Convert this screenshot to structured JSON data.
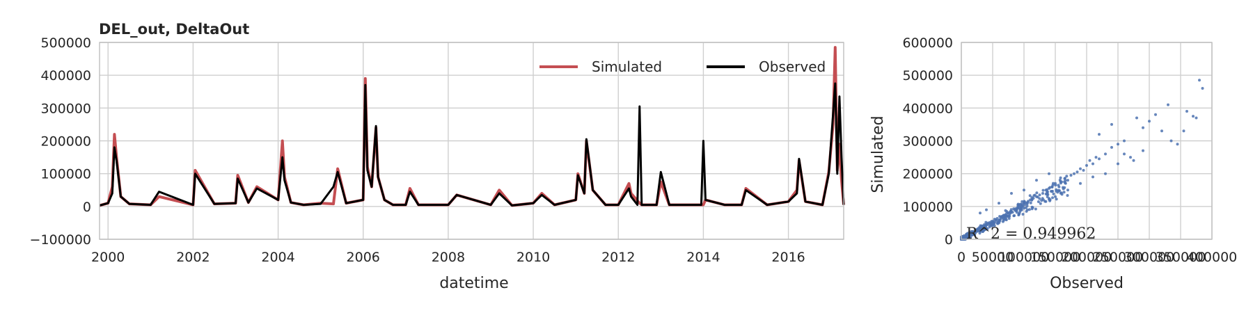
{
  "chart_data": [
    {
      "type": "line",
      "title": "DEL_out, DeltaOut",
      "xlabel": "datetime",
      "ylabel": "",
      "xlim": [
        1999.8,
        2017.3
      ],
      "ylim": [
        -100000,
        500000
      ],
      "xticks": [
        "2000",
        "2002",
        "2004",
        "2006",
        "2008",
        "2010",
        "2012",
        "2014",
        "2016"
      ],
      "yticks": [
        "−100000",
        "0",
        "100000",
        "200000",
        "300000",
        "400000",
        "500000"
      ],
      "grid": true,
      "legend_position": "top-right",
      "series": [
        {
          "name": "Simulated",
          "color": "#c44e52",
          "x": [
            1999.8,
            2000.0,
            2000.1,
            2000.15,
            2000.2,
            2000.3,
            2000.5,
            2001.0,
            2001.2,
            2002.0,
            2002.05,
            2002.5,
            2003.0,
            2003.05,
            2003.3,
            2003.5,
            2004.0,
            2004.1,
            2004.15,
            2004.3,
            2004.6,
            2005.0,
            2005.3,
            2005.4,
            2005.6,
            2006.0,
            2006.05,
            2006.1,
            2006.2,
            2006.3,
            2006.35,
            2006.5,
            2006.7,
            2007.0,
            2007.1,
            2007.3,
            2008.0,
            2008.2,
            2009.0,
            2009.2,
            2009.5,
            2010.0,
            2010.2,
            2010.5,
            2011.0,
            2011.05,
            2011.2,
            2011.25,
            2011.4,
            2011.7,
            2012.0,
            2012.25,
            2012.3,
            2012.5,
            2012.55,
            2012.9,
            2013.0,
            2013.2,
            2014.0,
            2014.05,
            2014.5,
            2014.9,
            2015.0,
            2015.5,
            2016.0,
            2016.2,
            2016.25,
            2016.4,
            2016.8,
            2016.95,
            2017.05,
            2017.1,
            2017.15,
            2017.2,
            2017.25,
            2017.3
          ],
          "y": [
            3000,
            10000,
            60000,
            220000,
            150000,
            30000,
            8000,
            5000,
            30000,
            5000,
            110000,
            8000,
            10000,
            95000,
            12000,
            60000,
            20000,
            200000,
            90000,
            12000,
            5000,
            10000,
            8000,
            115000,
            10000,
            20000,
            390000,
            120000,
            60000,
            240000,
            90000,
            20000,
            5000,
            5000,
            55000,
            5000,
            5000,
            35000,
            5000,
            50000,
            3000,
            10000,
            40000,
            5000,
            20000,
            100000,
            40000,
            200000,
            50000,
            5000,
            5000,
            70000,
            40000,
            10000,
            5000,
            5000,
            75000,
            5000,
            5000,
            20000,
            5000,
            5000,
            55000,
            5000,
            15000,
            50000,
            140000,
            15000,
            5000,
            105000,
            250000,
            485000,
            110000,
            190000,
            80000,
            5000
          ]
        },
        {
          "name": "Observed",
          "color": "#000000",
          "x": [
            1999.8,
            2000.0,
            2000.1,
            2000.15,
            2000.2,
            2000.3,
            2000.5,
            2001.0,
            2001.2,
            2002.0,
            2002.05,
            2002.5,
            2003.0,
            2003.05,
            2003.3,
            2003.5,
            2004.0,
            2004.1,
            2004.15,
            2004.3,
            2004.6,
            2005.0,
            2005.3,
            2005.4,
            2005.6,
            2006.0,
            2006.05,
            2006.1,
            2006.2,
            2006.3,
            2006.35,
            2006.5,
            2006.7,
            2007.0,
            2007.1,
            2007.3,
            2008.0,
            2008.2,
            2009.0,
            2009.2,
            2009.5,
            2010.0,
            2010.2,
            2010.5,
            2011.0,
            2011.05,
            2011.2,
            2011.25,
            2011.4,
            2011.7,
            2012.0,
            2012.25,
            2012.3,
            2012.45,
            2012.5,
            2012.55,
            2012.9,
            2013.0,
            2013.2,
            2013.95,
            2014.0,
            2014.05,
            2014.5,
            2014.9,
            2015.0,
            2015.5,
            2016.0,
            2016.2,
            2016.25,
            2016.4,
            2016.8,
            2016.95,
            2017.05,
            2017.1,
            2017.15,
            2017.2,
            2017.25,
            2017.3
          ],
          "y": [
            3000,
            10000,
            40000,
            180000,
            140000,
            30000,
            8000,
            5000,
            45000,
            5000,
            100000,
            8000,
            10000,
            85000,
            12000,
            55000,
            20000,
            150000,
            80000,
            12000,
            5000,
            8000,
            60000,
            105000,
            10000,
            20000,
            370000,
            110000,
            60000,
            245000,
            90000,
            20000,
            5000,
            5000,
            45000,
            5000,
            5000,
            35000,
            5000,
            40000,
            3000,
            10000,
            35000,
            5000,
            20000,
            95000,
            40000,
            205000,
            50000,
            5000,
            5000,
            55000,
            30000,
            5000,
            305000,
            5000,
            5000,
            105000,
            5000,
            5000,
            200000,
            20000,
            5000,
            5000,
            50000,
            5000,
            15000,
            40000,
            145000,
            15000,
            5000,
            100000,
            280000,
            375000,
            100000,
            335000,
            150000,
            5000
          ]
        }
      ]
    },
    {
      "type": "scatter",
      "title": "",
      "xlabel": "Observed",
      "ylabel": "Simulated",
      "xlim": [
        0,
        400000
      ],
      "ylim": [
        0,
        600000
      ],
      "xticks": [
        "0",
        "50000",
        "100000",
        "150000",
        "200000",
        "250000",
        "300000",
        "350000",
        "400000"
      ],
      "yticks": [
        "0",
        "100000",
        "200000",
        "300000",
        "400000",
        "500000",
        "600000"
      ],
      "grid": true,
      "color": "#4c72b0",
      "annotation": "R^2 = 0.949962",
      "points": [
        [
          5000,
          6000
        ],
        [
          8000,
          7000
        ],
        [
          12000,
          14000
        ],
        [
          15000,
          16000
        ],
        [
          20000,
          22000
        ],
        [
          25000,
          24000
        ],
        [
          30000,
          35000
        ],
        [
          35000,
          33000
        ],
        [
          40000,
          45000
        ],
        [
          45000,
          42000
        ],
        [
          50000,
          55000
        ],
        [
          55000,
          60000
        ],
        [
          60000,
          58000
        ],
        [
          65000,
          70000
        ],
        [
          70000,
          72000
        ],
        [
          75000,
          80000
        ],
        [
          80000,
          85000
        ],
        [
          85000,
          90000
        ],
        [
          90000,
          95000
        ],
        [
          95000,
          100000
        ],
        [
          100000,
          110000
        ],
        [
          105000,
          108000
        ],
        [
          110000,
          120000
        ],
        [
          115000,
          125000
        ],
        [
          120000,
          130000
        ],
        [
          125000,
          135000
        ],
        [
          130000,
          140000
        ],
        [
          135000,
          150000
        ],
        [
          140000,
          155000
        ],
        [
          145000,
          160000
        ],
        [
          150000,
          170000
        ],
        [
          155000,
          165000
        ],
        [
          160000,
          175000
        ],
        [
          165000,
          185000
        ],
        [
          170000,
          180000
        ],
        [
          175000,
          195000
        ],
        [
          180000,
          200000
        ],
        [
          185000,
          205000
        ],
        [
          190000,
          215000
        ],
        [
          195000,
          210000
        ],
        [
          200000,
          225000
        ],
        [
          205000,
          240000
        ],
        [
          210000,
          230000
        ],
        [
          215000,
          250000
        ],
        [
          220000,
          245000
        ],
        [
          230000,
          260000
        ],
        [
          240000,
          280000
        ],
        [
          250000,
          290000
        ],
        [
          260000,
          300000
        ],
        [
          280000,
          370000
        ],
        [
          290000,
          340000
        ],
        [
          300000,
          360000
        ],
        [
          310000,
          380000
        ],
        [
          320000,
          330000
        ],
        [
          330000,
          410000
        ],
        [
          335000,
          300000
        ],
        [
          345000,
          290000
        ],
        [
          355000,
          330000
        ],
        [
          360000,
          390000
        ],
        [
          370000,
          375000
        ],
        [
          375000,
          370000
        ],
        [
          380000,
          485000
        ],
        [
          385000,
          460000
        ],
        [
          30000,
          80000
        ],
        [
          40000,
          90000
        ],
        [
          60000,
          110000
        ],
        [
          80000,
          140000
        ],
        [
          100000,
          150000
        ],
        [
          120000,
          180000
        ],
        [
          140000,
          200000
        ],
        [
          150000,
          130000
        ],
        [
          170000,
          150000
        ],
        [
          190000,
          170000
        ],
        [
          210000,
          190000
        ],
        [
          230000,
          200000
        ],
        [
          250000,
          230000
        ],
        [
          270000,
          250000
        ],
        [
          290000,
          270000
        ],
        [
          220000,
          320000
        ],
        [
          240000,
          350000
        ],
        [
          260000,
          260000
        ],
        [
          275000,
          240000
        ]
      ]
    }
  ]
}
